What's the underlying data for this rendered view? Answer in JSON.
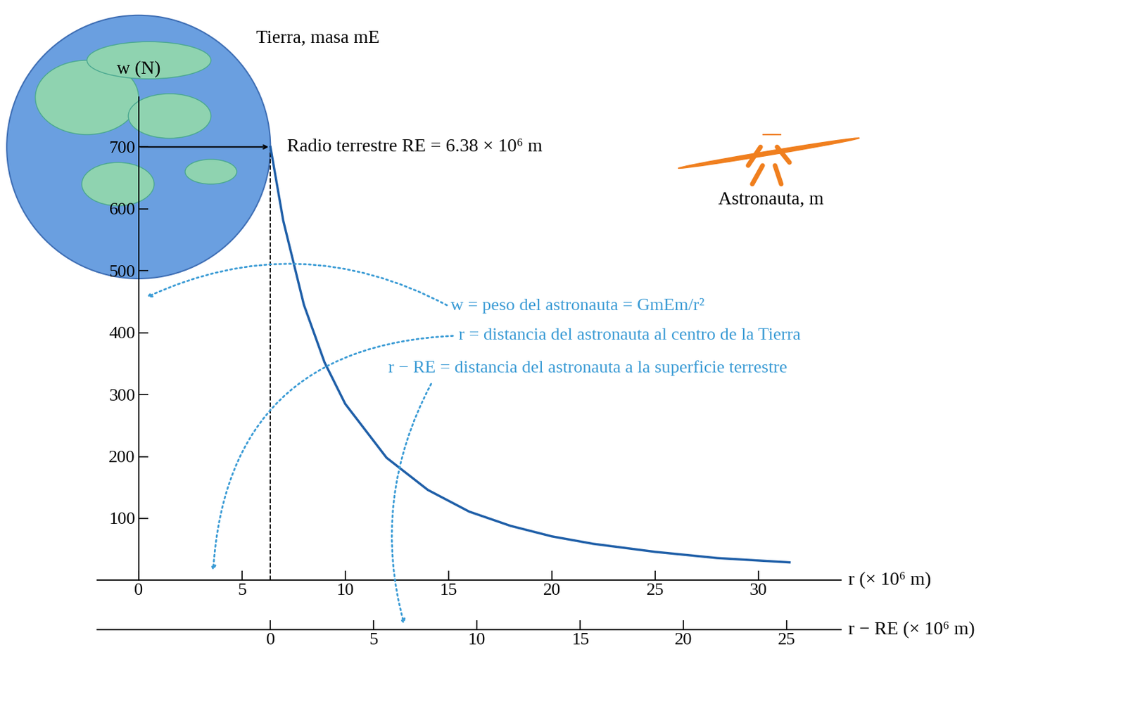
{
  "chart_data": {
    "type": "line",
    "x": [
      6.38,
      7,
      8,
      9,
      10,
      12,
      14,
      16,
      18,
      20,
      22,
      25,
      28,
      31.5
    ],
    "values": [
      700,
      581,
      445,
      352,
      285,
      198,
      146,
      111,
      88,
      71,
      59,
      46,
      36,
      29
    ],
    "color": "#1f5fa8",
    "xlim": [
      -2,
      34
    ],
    "xticks": [
      0,
      5,
      10,
      15,
      20,
      25,
      30
    ],
    "ylim": [
      0,
      780
    ],
    "yticks": [
      100,
      200,
      300,
      400,
      500,
      600,
      700
    ],
    "x_label": "r (× 10⁶ m)",
    "y_label": "w (N)",
    "x2lim": [
      -8.38,
      27.62
    ],
    "x2ticks": [
      0,
      5,
      10,
      15,
      20,
      25
    ],
    "x2_label": "r − RE (× 10⁶ m)",
    "radius": 6.38,
    "earth_label": "Tierra, masa mE",
    "radius_label": "Radio terrestre RE = 6.38 × 10⁶ m",
    "astronaut_label": "Astronauta, m",
    "notes": [
      "w = peso del astronauta = GmEm/r²",
      "r = distancia del astronauta al centro de la Tierra",
      "r − RE = distancia del astronauta a la superficie terrestre"
    ]
  }
}
